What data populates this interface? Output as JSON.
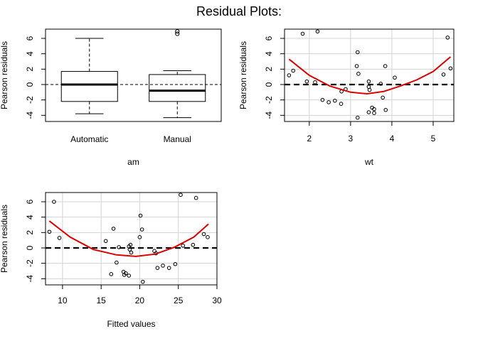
{
  "title": "Residual Plots:",
  "colors": {
    "curve": "#dd0000",
    "grid": "#d3d3d3",
    "axis": "#000000"
  },
  "chart_data": [
    {
      "type": "box",
      "xlabel": "am",
      "ylabel": "Pearson residuals",
      "ylim": [
        -4.8,
        7.2
      ],
      "yticks": [
        -4,
        -2,
        0,
        2,
        4,
        6
      ],
      "grid": false,
      "reference_line": 0,
      "categories": [
        "Automatic",
        "Manual"
      ],
      "boxes": [
        {
          "whisker_low": -3.8,
          "q1": -2.2,
          "median": 0.0,
          "q3": 1.7,
          "whisker_high": 6.0,
          "outliers": []
        },
        {
          "whisker_low": -4.3,
          "q1": -2.2,
          "median": -0.8,
          "q3": 1.3,
          "whisker_high": 1.8,
          "outliers": [
            6.6,
            6.9
          ]
        }
      ]
    },
    {
      "type": "scatter",
      "xlabel": "wt",
      "ylabel": "Pearson residuals",
      "xlim": [
        1.4,
        5.5
      ],
      "ylim": [
        -4.8,
        7.2
      ],
      "xticks": [
        2,
        3,
        4,
        5
      ],
      "yticks": [
        -4,
        -2,
        0,
        2,
        4,
        6
      ],
      "grid": true,
      "reference_line": 0,
      "points": [
        [
          1.51,
          1.2
        ],
        [
          1.61,
          1.8
        ],
        [
          1.84,
          6.6
        ],
        [
          1.94,
          0.4
        ],
        [
          2.14,
          0.3
        ],
        [
          2.2,
          6.9
        ],
        [
          2.32,
          -2.0
        ],
        [
          2.47,
          -2.3
        ],
        [
          2.62,
          -2.1
        ],
        [
          2.77,
          -2.5
        ],
        [
          2.78,
          -0.9
        ],
        [
          2.88,
          -0.6
        ],
        [
          3.15,
          2.4
        ],
        [
          3.17,
          4.2
        ],
        [
          3.19,
          1.4
        ],
        [
          3.17,
          -4.3
        ],
        [
          3.44,
          0.4
        ],
        [
          3.44,
          -0.3
        ],
        [
          3.46,
          -0.7
        ],
        [
          3.44,
          -3.6
        ],
        [
          3.52,
          -3.0
        ],
        [
          3.57,
          -3.2
        ],
        [
          3.57,
          -3.7
        ],
        [
          3.73,
          0.1
        ],
        [
          3.78,
          -1.7
        ],
        [
          3.84,
          2.4
        ],
        [
          3.85,
          -3.3
        ],
        [
          4.07,
          0.9
        ],
        [
          5.25,
          1.3
        ],
        [
          5.35,
          6.1
        ],
        [
          5.42,
          2.1
        ]
      ],
      "smooth_curve": [
        [
          1.51,
          3.3
        ],
        [
          2.0,
          1.2
        ],
        [
          2.5,
          -0.2
        ],
        [
          3.0,
          -1.0
        ],
        [
          3.4,
          -1.2
        ],
        [
          3.8,
          -0.9
        ],
        [
          4.2,
          -0.2
        ],
        [
          4.6,
          0.6
        ],
        [
          5.0,
          1.7
        ],
        [
          5.42,
          3.6
        ]
      ]
    },
    {
      "type": "scatter",
      "xlabel": "Fitted values",
      "ylabel": "Pearson residuals",
      "xlim": [
        7.8,
        30.0
      ],
      "ylim": [
        -4.8,
        7.2
      ],
      "xticks": [
        10,
        15,
        20,
        25,
        30
      ],
      "yticks": [
        -4,
        -2,
        0,
        2,
        4,
        6
      ],
      "grid": true,
      "reference_line": 0,
      "points": [
        [
          8.3,
          2.1
        ],
        [
          8.9,
          6.0
        ],
        [
          9.6,
          1.3
        ],
        [
          15.6,
          0.9
        ],
        [
          16.3,
          -3.4
        ],
        [
          16.6,
          2.5
        ],
        [
          17.0,
          -1.9
        ],
        [
          17.3,
          0.1
        ],
        [
          17.9,
          -3.1
        ],
        [
          18.2,
          -3.3
        ],
        [
          18.0,
          -3.5
        ],
        [
          18.6,
          -3.6
        ],
        [
          18.6,
          0.2
        ],
        [
          18.7,
          -0.2
        ],
        [
          18.8,
          0.4
        ],
        [
          18.9,
          -0.6
        ],
        [
          20.0,
          1.4
        ],
        [
          20.1,
          4.2
        ],
        [
          20.3,
          2.4
        ],
        [
          20.4,
          -4.4
        ],
        [
          21.9,
          -0.4
        ],
        [
          22.1,
          -0.7
        ],
        [
          22.3,
          -2.6
        ],
        [
          23.0,
          -2.3
        ],
        [
          23.8,
          -2.6
        ],
        [
          24.6,
          -2.1
        ],
        [
          25.3,
          6.9
        ],
        [
          25.6,
          0.3
        ],
        [
          26.9,
          0.4
        ],
        [
          27.3,
          6.5
        ],
        [
          28.3,
          1.8
        ],
        [
          28.8,
          1.4
        ]
      ],
      "smooth_curve": [
        [
          8.3,
          3.5
        ],
        [
          11.0,
          1.4
        ],
        [
          14.0,
          -0.2
        ],
        [
          17.0,
          -0.9
        ],
        [
          19.5,
          -1.1
        ],
        [
          22.0,
          -0.8
        ],
        [
          24.5,
          0.1
        ],
        [
          27.0,
          1.4
        ],
        [
          28.9,
          3.1
        ]
      ]
    }
  ]
}
